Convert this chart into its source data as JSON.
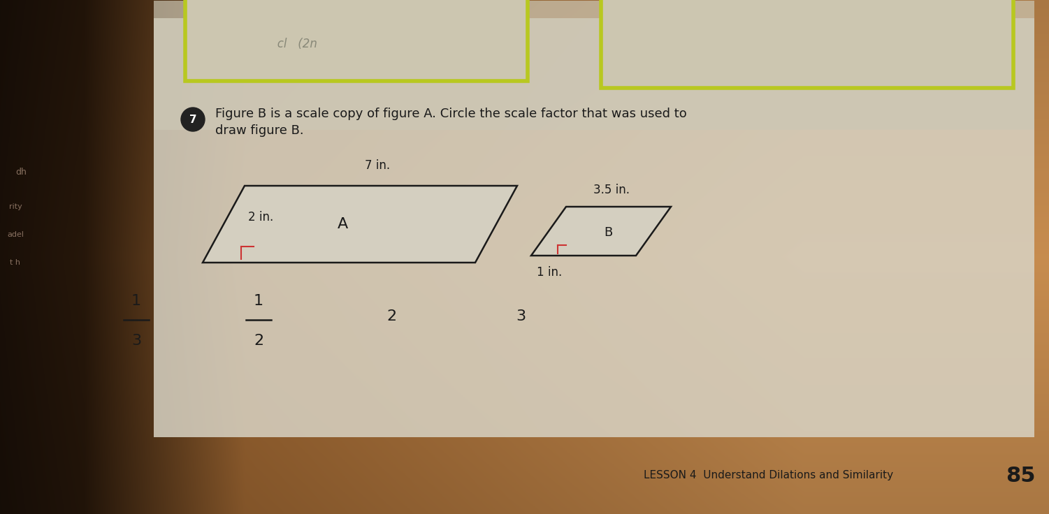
{
  "bg_left_color": "#2a1a10",
  "bg_right_color": "#c8bfaa",
  "page_color": "#ddd8ca",
  "question_number": "7",
  "question_circle_color": "#2a2a2a",
  "question_text_line1": "Figure B is a scale copy of figure A. Circle the scale factor that was used to",
  "question_text_line2": "draw figure B.",
  "fig_A_label": "A",
  "fig_B_label": "B",
  "fig_A_7in": "7 in.",
  "fig_A_2in": "2 in.",
  "fig_B_35in": "3.5 in.",
  "fig_B_1in": "1 in.",
  "bottom_text": "LESSON 4  Understand Dilations and Similarity",
  "page_number": "85",
  "top_box_color": "#b8c820",
  "shape_fill": "#ddd8ca",
  "shape_edge": "#1a1a1a",
  "right_angle_color": "#cc3333",
  "text_color": "#1a1a1a",
  "frac_1_3_top": "1",
  "frac_1_3_bot": "3",
  "frac_1_2_top": "1",
  "frac_1_2_bot": "2",
  "opt_2": "2",
  "opt_3": "3"
}
